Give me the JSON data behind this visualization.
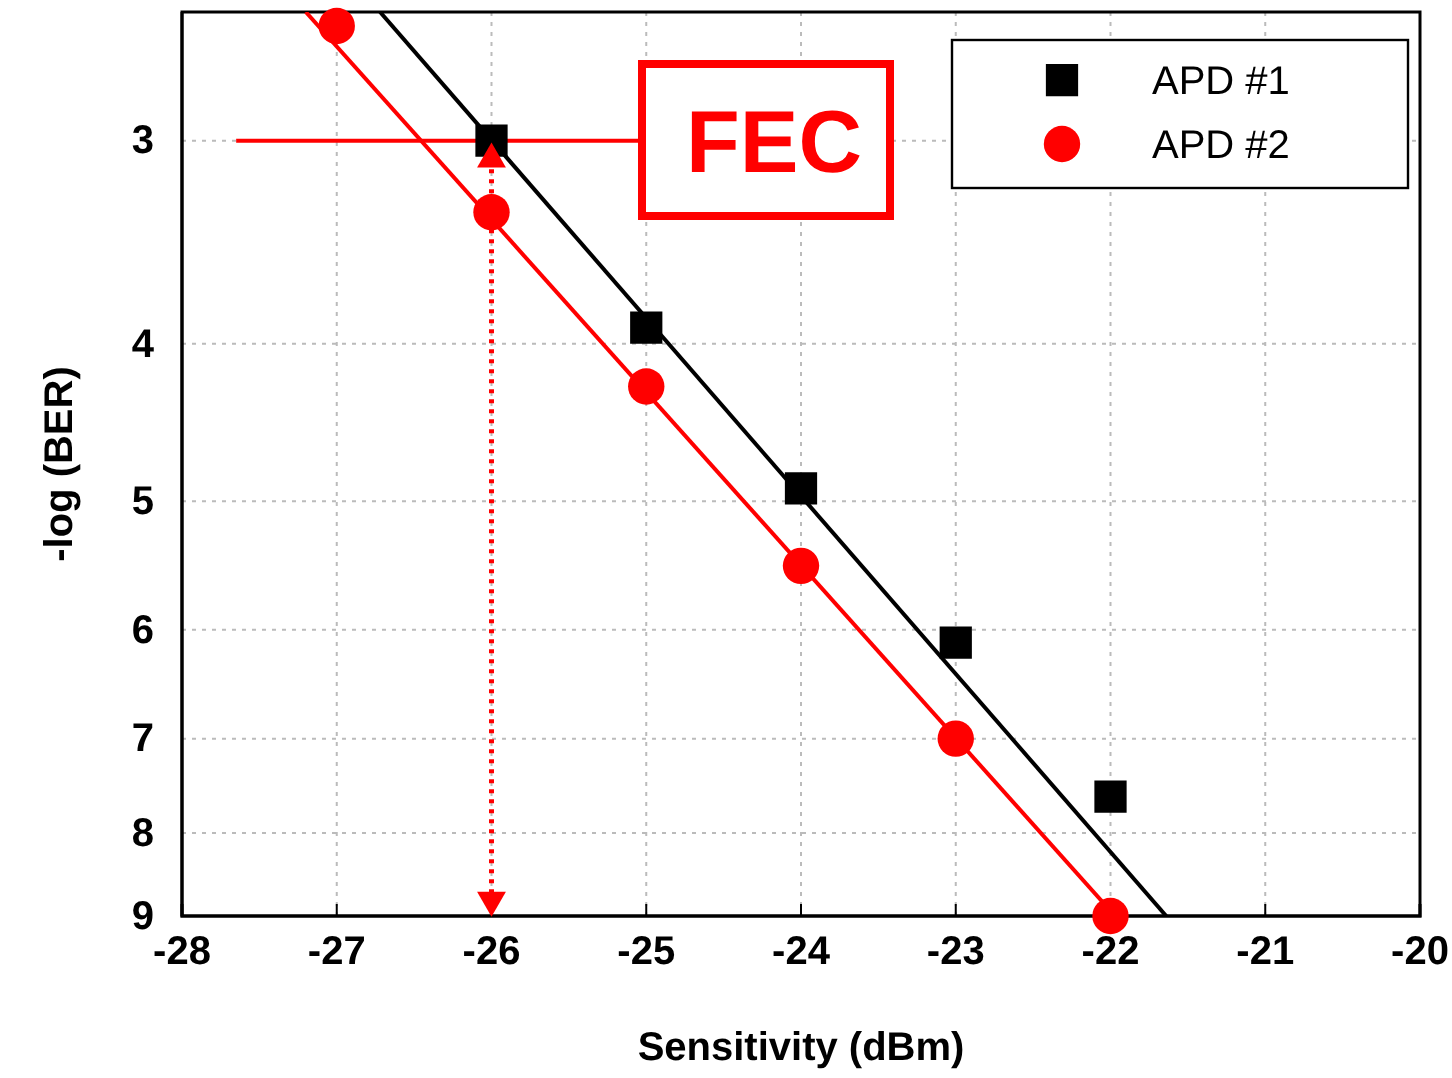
{
  "chart_data": {
    "type": "scatter",
    "xlabel": "Sensitivity (dBm)",
    "ylabel": "-log (BER)",
    "xlim": [
      -28,
      -20
    ],
    "xticks": [
      -28,
      -27,
      -26,
      -25,
      -24,
      -23,
      -22,
      -21,
      -20
    ],
    "ylim": [
      9,
      2.5
    ],
    "yticks": [
      3,
      4,
      5,
      6,
      7,
      8,
      9
    ],
    "log": "y",
    "grid": true,
    "legend": "top right",
    "series": [
      {
        "name": "APD #1",
        "color": "#000000",
        "marker": "square",
        "x": [
          -26,
          -25,
          -24,
          -23,
          -22
        ],
        "values": [
          3,
          3.91,
          4.91,
          6.11,
          7.6
        ]
      },
      {
        "name": "APD #2",
        "color": "#ff0000",
        "marker": "circle",
        "x": [
          -27,
          -26,
          -25,
          -24,
          -23,
          -22
        ],
        "values": [
          2.55,
          3.32,
          4.25,
          5.48,
          7,
          9
        ]
      },
      {
        "color": "#000000",
        "type": "line",
        "marker": "none",
        "line_style": "solid",
        "x": [
          -26.72,
          -21.64
        ],
        "values": [
          2.5,
          9
        ]
      },
      {
        "color": "#ff0000",
        "type": "line",
        "marker": "none",
        "line_style": "solid",
        "x": [
          -27.2,
          -21.97
        ],
        "values": [
          2.5,
          9
        ]
      },
      {
        "color": "#ff0000",
        "type": "line",
        "marker": "none",
        "line_style": "solid",
        "x": [
          -27.65,
          -25.05
        ],
        "values": [
          3,
          3
        ]
      },
      {
        "color": "#ff0000",
        "type": "line",
        "marker": "triangle",
        "line_style": "dotted",
        "x": [
          -26,
          -26
        ],
        "values": [
          3.08,
          8.8
        ]
      }
    ],
    "annotations": [
      "FEC"
    ]
  }
}
